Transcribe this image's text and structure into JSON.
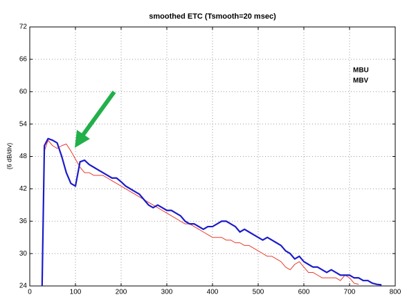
{
  "chart_data": {
    "type": "line",
    "title": "smoothed ETC (Tsmooth=20 msec)",
    "y_label": "(6 dB/div)",
    "x": [
      27,
      32,
      40,
      50,
      60,
      70,
      80,
      90,
      100,
      110,
      120,
      130,
      140,
      150,
      160,
      170,
      180,
      190,
      200,
      210,
      220,
      230,
      240,
      250,
      260,
      270,
      280,
      290,
      300,
      310,
      320,
      330,
      340,
      350,
      360,
      370,
      380,
      390,
      400,
      410,
      420,
      430,
      440,
      450,
      460,
      470,
      480,
      490,
      500,
      510,
      520,
      530,
      540,
      550,
      560,
      570,
      580,
      590,
      600,
      610,
      620,
      630,
      640,
      650,
      660,
      670,
      680,
      690,
      700,
      710,
      720,
      730,
      740,
      750,
      760,
      770
    ],
    "series": [
      {
        "name": "MBU",
        "color": "#e8392b",
        "width": 1,
        "values": [
          24,
          49,
          51,
          50,
          49.5,
          50,
          50.3,
          49,
          47.5,
          46,
          45,
          45,
          44.5,
          44.5,
          44.5,
          44,
          43.5,
          43,
          42.5,
          42,
          41.5,
          41,
          40.5,
          40,
          39.5,
          39,
          38.5,
          38,
          37.5,
          37,
          36.5,
          36,
          35.5,
          35.5,
          35,
          34.5,
          34,
          33.5,
          33,
          33,
          33,
          32.5,
          32.5,
          32,
          32,
          31.5,
          31.5,
          31,
          30.5,
          30,
          29.5,
          29.5,
          29,
          28.5,
          27.5,
          27,
          28,
          28.5,
          27.5,
          26.5,
          26.5,
          26,
          25.5,
          25.5,
          25.5,
          25.5,
          25,
          26,
          25.5,
          24.5,
          24.3,
          null,
          null,
          null,
          null,
          null
        ]
      },
      {
        "name": "MBV",
        "color": "#1a1acc",
        "width": 2.2,
        "values": [
          24,
          50,
          51.3,
          51,
          50.5,
          48,
          45,
          43,
          42.5,
          47,
          47.3,
          46.5,
          46,
          45.5,
          45,
          44.5,
          44,
          44,
          43.3,
          42.5,
          42,
          41.5,
          41,
          40,
          39,
          38.5,
          39,
          38.5,
          38,
          38,
          37.5,
          37,
          36,
          35.5,
          35.5,
          35,
          34.5,
          35,
          35,
          35.5,
          36,
          36,
          35.5,
          35,
          34,
          34.5,
          34,
          33.5,
          33,
          32.5,
          33,
          32.5,
          32,
          31.5,
          30.5,
          30,
          29,
          29.5,
          28.5,
          28,
          27.5,
          27.5,
          27,
          26.5,
          27,
          26.5,
          26,
          26,
          26,
          25.5,
          25.5,
          25,
          25,
          24.5,
          24.3,
          24.2
        ]
      }
    ],
    "xlim": [
      0,
      800
    ],
    "xticks": [
      0,
      100,
      200,
      300,
      400,
      500,
      600,
      700,
      800
    ],
    "ylim": [
      24,
      72
    ],
    "yticks": [
      24,
      30,
      36,
      42,
      48,
      54,
      60,
      66,
      72
    ],
    "grid": true,
    "legend": "upper right"
  }
}
